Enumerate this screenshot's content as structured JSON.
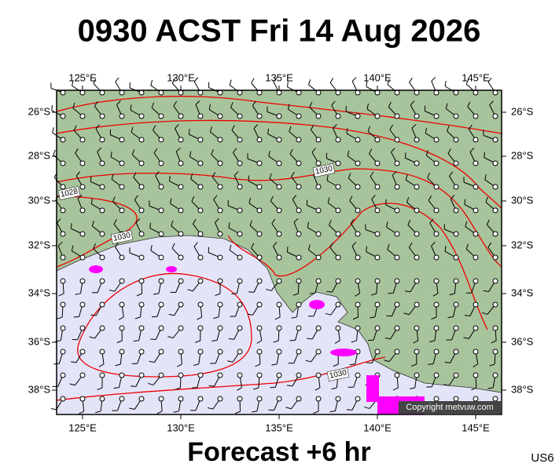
{
  "header": {
    "title": "0930 ACST Fri 14 Aug 2026"
  },
  "map": {
    "lon_labels": [
      "125°E",
      "130°E",
      "135°E",
      "140°E",
      "145°E"
    ],
    "lat_labels": [
      "26°S",
      "28°S",
      "30°S",
      "32°S",
      "34°S",
      "36°S",
      "38°S"
    ],
    "isobar_labels": [
      "1028",
      "1030",
      "1030",
      "1030"
    ],
    "copyright": "Copyright metvuw.com"
  },
  "footer": {
    "caption": "Forecast +6 hr",
    "code": "US6"
  }
}
